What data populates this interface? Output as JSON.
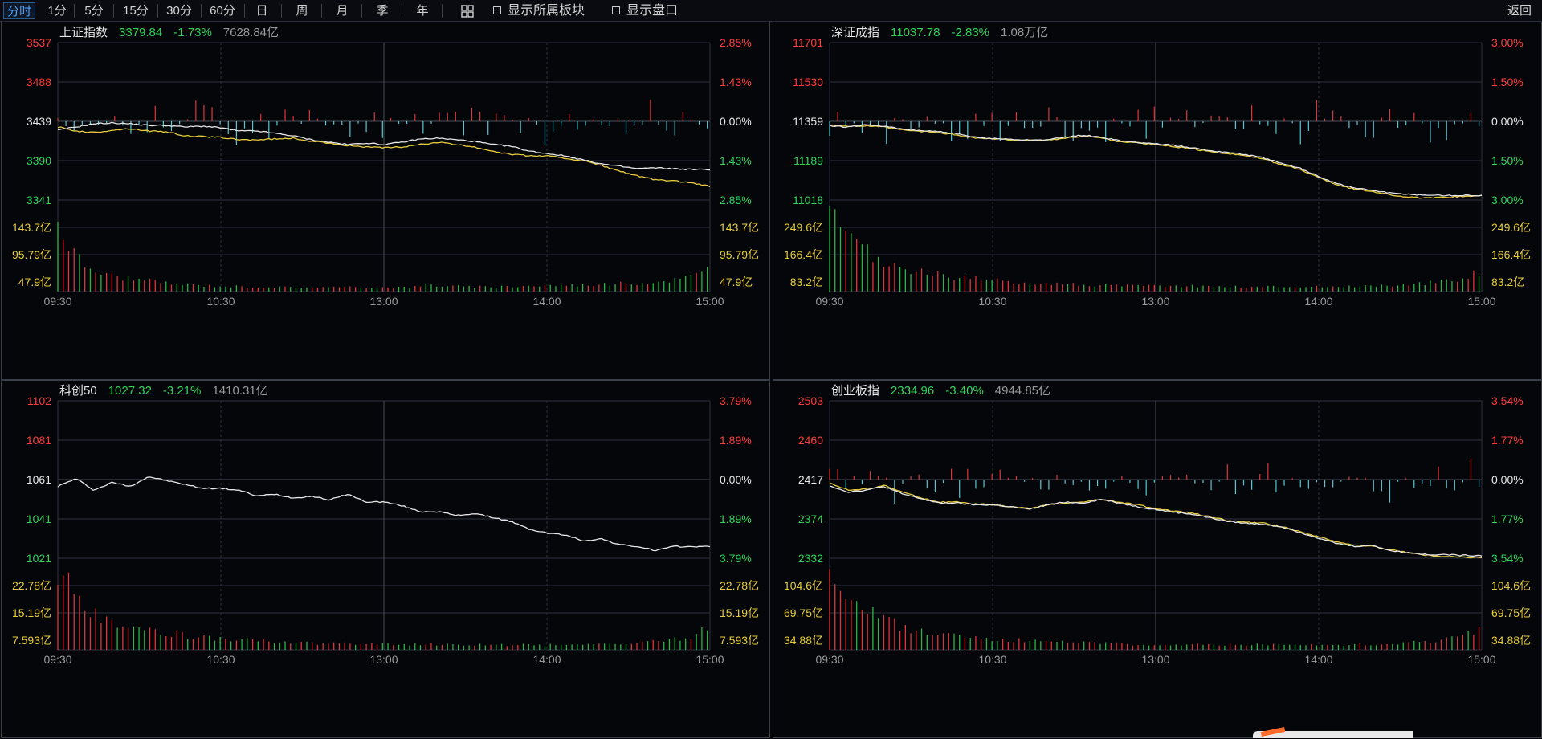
{
  "toolbar": {
    "periods": [
      "分时",
      "1分",
      "5分",
      "15分",
      "30分",
      "60分",
      "日",
      "周",
      "月",
      "季",
      "年"
    ],
    "active_period": "分时",
    "show_sector_label": "显示所属板块",
    "show_order_book_label": "显示盘口",
    "back_label": "返回",
    "grid_icon": "grid-icon"
  },
  "colors": {
    "up": "#ff3b3b",
    "down": "#2fd35a",
    "price_line": "#e6e6e6",
    "avg_line": "#e6cc3c",
    "bar_up": "#e0353b",
    "bar_down": "#27b845",
    "macd_up": "#e0353b",
    "macd_down": "#56c8d4",
    "grid": "#2e3340",
    "grid_mid": "#4a4f5a"
  },
  "panels": [
    {
      "name": "上证指数",
      "price": "3379.84",
      "change": "-1.73%",
      "amount": "7628.84亿",
      "price_labels": [
        "3537",
        "3488",
        "3439",
        "3390",
        "3341"
      ],
      "pct_labels": [
        "2.85%",
        "1.43%",
        "0.00%",
        "1.43%",
        "2.85%"
      ],
      "vol_labels": [
        "143.7亿",
        "95.79亿",
        "47.9亿"
      ],
      "time_labels": [
        "09:30",
        "10:30",
        "13:00",
        "14:00",
        "15:00"
      ],
      "y_range": [
        3341,
        3537
      ],
      "prev_close": 3439,
      "vol_max": 191.6,
      "has_avg_line": true,
      "has_macd": true,
      "price_series": [
        3428,
        3432,
        3436,
        3437,
        3436,
        3434,
        3434,
        3432,
        3433,
        3431,
        3427,
        3427,
        3424,
        3421,
        3416,
        3413,
        3410,
        3412,
        3410,
        3413,
        3417,
        3418,
        3416,
        3414,
        3410,
        3408,
        3402,
        3399,
        3396,
        3391,
        3386,
        3383,
        3380,
        3381,
        3380,
        3379,
        3379
      ],
      "avg_series": [
        3432,
        3427,
        3425,
        3428,
        3430,
        3427,
        3426,
        3421,
        3420,
        3419,
        3416,
        3416,
        3417,
        3418,
        3414,
        3412,
        3409,
        3407,
        3406,
        3407,
        3410,
        3413,
        3410,
        3407,
        3402,
        3398,
        3396,
        3396,
        3393,
        3390,
        3384,
        3377,
        3371,
        3366,
        3365,
        3362,
        3358
      ],
      "vol_series": [
        150,
        115,
        80,
        60,
        50,
        42,
        35,
        32,
        30,
        27,
        25,
        23,
        20,
        19,
        17,
        16,
        15,
        14,
        13,
        12,
        12,
        11,
        11,
        10,
        10,
        10,
        10,
        9,
        9,
        9,
        9,
        9,
        9,
        9,
        9,
        9,
        9,
        9,
        9,
        9,
        9,
        9,
        9,
        9,
        10,
        10,
        18,
        13,
        12,
        11,
        11,
        10,
        10,
        10,
        10,
        11,
        11,
        11,
        12,
        12,
        12,
        13,
        13,
        13,
        14,
        14,
        15,
        15,
        16,
        16,
        17,
        17,
        18,
        19,
        20,
        22,
        24,
        26,
        29,
        33,
        40,
        50
      ]
    },
    {
      "name": "深证成指",
      "price": "11037.78",
      "change": "-2.83%",
      "amount": "1.08万亿",
      "price_labels": [
        "11701",
        "11530",
        "11359",
        "11189",
        "11018"
      ],
      "pct_labels": [
        "3.00%",
        "1.50%",
        "0.00%",
        "1.50%",
        "3.00%"
      ],
      "vol_labels": [
        "249.6亿",
        "166.4亿",
        "83.2亿"
      ],
      "time_labels": [
        "09:30",
        "10:30",
        "13:00",
        "14:00",
        "15:00"
      ],
      "y_range": [
        11018,
        11701
      ],
      "prev_close": 11359,
      "vol_max": 332.8,
      "has_avg_line": true,
      "has_macd": true,
      "price_series": [
        11340,
        11335,
        11345,
        11338,
        11325,
        11320,
        11315,
        11305,
        11290,
        11285,
        11282,
        11278,
        11280,
        11290,
        11300,
        11290,
        11275,
        11268,
        11262,
        11255,
        11245,
        11232,
        11225,
        11215,
        11200,
        11175,
        11155,
        11120,
        11090,
        11070,
        11060,
        11048,
        11042,
        11040,
        11038,
        11038,
        11038
      ],
      "avg_series": [
        11345,
        11338,
        11340,
        11335,
        11322,
        11316,
        11312,
        11300,
        11288,
        11283,
        11279,
        11276,
        11278,
        11286,
        11296,
        11287,
        11272,
        11266,
        11258,
        11250,
        11240,
        11228,
        11220,
        11210,
        11195,
        11170,
        11150,
        11115,
        11085,
        11065,
        11055,
        11040,
        11030,
        11026,
        11030,
        11034,
        11036
      ]
    },
    {
      "name": "科创50",
      "price": "1027.32",
      "change": "-3.21%",
      "amount": "1410.31亿",
      "price_labels": [
        "1102",
        "1081",
        "1061",
        "1041",
        "1021"
      ],
      "pct_labels": [
        "3.79%",
        "1.89%",
        "0.00%",
        "1.89%",
        "3.79%"
      ],
      "vol_labels": [
        "22.78亿",
        "15.19亿",
        "7.593亿"
      ],
      "time_labels": [
        "09:30",
        "10:30",
        "13:00",
        "14:00",
        "15:00"
      ],
      "y_range": [
        1021,
        1102
      ],
      "prev_close": 1061,
      "vol_max": 30.37,
      "has_avg_line": false,
      "has_macd": false,
      "price_series": [
        1058,
        1062,
        1056,
        1060,
        1058,
        1063,
        1061,
        1059,
        1057,
        1057,
        1056,
        1053,
        1054,
        1052,
        1053,
        1051,
        1054,
        1050,
        1050,
        1048,
        1045,
        1045,
        1043,
        1044,
        1042,
        1040,
        1036,
        1034,
        1033,
        1030,
        1031,
        1028,
        1027,
        1025,
        1027,
        1027,
        1027
      ]
    },
    {
      "name": "创业板指",
      "price": "2334.96",
      "change": "-3.40%",
      "amount": "4944.85亿",
      "price_labels": [
        "2503",
        "2460",
        "2417",
        "2374",
        "2332"
      ],
      "pct_labels": [
        "3.54%",
        "1.77%",
        "0.00%",
        "1.77%",
        "3.54%"
      ],
      "vol_labels": [
        "104.6亿",
        "69.75亿",
        "34.88亿"
      ],
      "time_labels": [
        "09:30",
        "10:30",
        "13:00",
        "14:00",
        "15:00"
      ],
      "y_range": [
        2332,
        2503
      ],
      "prev_close": 2417,
      "vol_max": 139.5,
      "has_avg_line": true,
      "has_macd": true,
      "price_series": [
        2411,
        2404,
        2406,
        2410,
        2402,
        2397,
        2392,
        2392,
        2390,
        2390,
        2388,
        2385,
        2390,
        2393,
        2392,
        2396,
        2392,
        2388,
        2385,
        2382,
        2380,
        2376,
        2372,
        2370,
        2369,
        2366,
        2360,
        2354,
        2348,
        2345,
        2346,
        2340,
        2338,
        2336,
        2336,
        2335,
        2335
      ],
      "avg_series": [
        2414,
        2406,
        2407,
        2411,
        2404,
        2398,
        2393,
        2393,
        2391,
        2390,
        2388,
        2386,
        2390,
        2392,
        2393,
        2396,
        2393,
        2390,
        2386,
        2383,
        2381,
        2377,
        2373,
        2371,
        2370,
        2366,
        2361,
        2355,
        2350,
        2346,
        2345,
        2341,
        2338,
        2335,
        2334,
        2333,
        2333
      ]
    }
  ]
}
